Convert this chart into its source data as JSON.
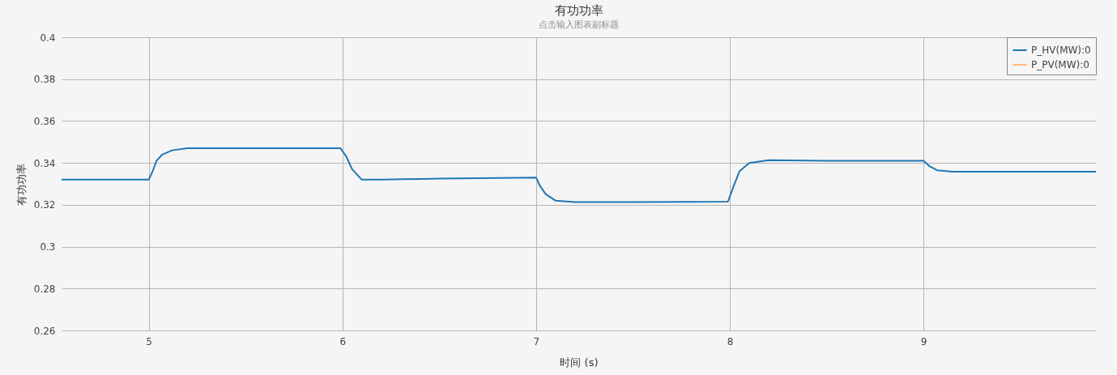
{
  "chart_data": {
    "type": "line",
    "title": "有功功率",
    "subtitle": "点击输入图表副标题",
    "xlabel": "时间 (s)",
    "ylabel": "有功功率",
    "x": [
      4.55,
      4.8,
      5.0,
      5.02,
      5.04,
      5.07,
      5.12,
      5.2,
      5.5,
      5.99,
      6.02,
      6.05,
      6.1,
      6.2,
      6.5,
      7.0,
      7.02,
      7.05,
      7.1,
      7.2,
      7.5,
      7.99,
      8.02,
      8.05,
      8.1,
      8.2,
      8.5,
      9.0,
      9.03,
      9.07,
      9.15,
      9.5,
      9.89
    ],
    "series": [
      {
        "name": "P_HV(MW):0",
        "color": "#1f77b4",
        "values": [
          0.332,
          0.332,
          0.332,
          0.336,
          0.341,
          0.344,
          0.346,
          0.347,
          0.347,
          0.347,
          0.343,
          0.337,
          0.332,
          0.332,
          0.3325,
          0.333,
          0.329,
          0.325,
          0.322,
          0.3213,
          0.3213,
          0.3215,
          0.329,
          0.336,
          0.34,
          0.3413,
          0.341,
          0.341,
          0.3385,
          0.3365,
          0.3358,
          0.3358,
          0.3358
        ]
      },
      {
        "name": "P_PV(MW):0",
        "color": "#ffbb78",
        "values": [
          null,
          null,
          null,
          null,
          null,
          null,
          null,
          null,
          null,
          null,
          null,
          null,
          null,
          null,
          null,
          null,
          null,
          null,
          null,
          null,
          null,
          null,
          null,
          null,
          null,
          null,
          null,
          null,
          null,
          null,
          null,
          null,
          null
        ]
      }
    ],
    "xlim": [
      4.55,
      9.89
    ],
    "xticks": [
      5,
      6,
      7,
      8,
      9
    ],
    "ylim": [
      0.26,
      0.4
    ],
    "yticks": [
      0.26,
      0.28,
      0.3,
      0.32,
      0.34,
      0.36,
      0.38,
      0.4
    ],
    "grid": true,
    "legend": "top right",
    "line_style": "solid",
    "marker": "none"
  }
}
